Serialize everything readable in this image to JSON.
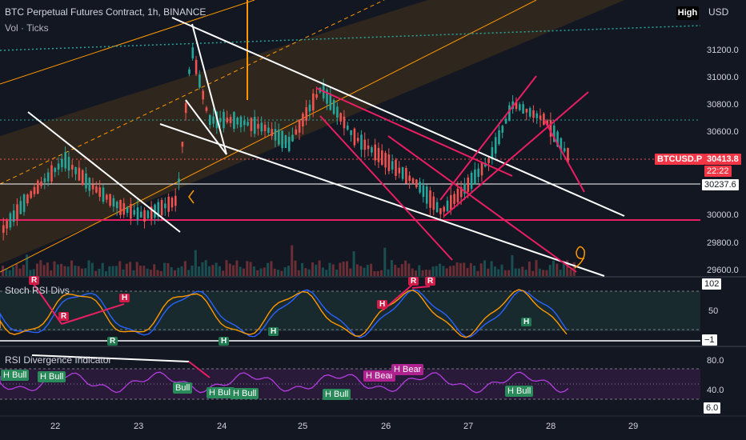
{
  "header": {
    "title": "BTC Perpetual Futures Contract, 1h, BINANCE",
    "subtitle": "Vol · Ticks",
    "high_button": "High",
    "currency": "USD"
  },
  "price_axis": {
    "labels": [
      "31200.0",
      "31000.0",
      "30800.0",
      "30600.0",
      "30000.0",
      "29800.0",
      "29600.0"
    ],
    "symbol_label": "BTCUSD.P",
    "last_price": "30413.8",
    "countdown": "22:22",
    "line_value": "30237.6",
    "colors": {
      "symbol_bg": "#f23645",
      "line_bg": "#ffffff"
    }
  },
  "stoch_panel": {
    "title": "Stoch RSI Divs",
    "axis": [
      "102",
      "50",
      "−1"
    ],
    "markers_r": [
      "R",
      "R",
      "R",
      "R",
      "R"
    ],
    "markers_h": [
      "H",
      "H",
      "H"
    ],
    "markers_h_small": [
      "H",
      "H"
    ]
  },
  "rsi_panel": {
    "title": "RSI Divergence Indicator",
    "axis": [
      "80.0",
      "40.0",
      "6.0"
    ],
    "badges": [
      "H Bull",
      "H Bull",
      "Bull",
      "H Bull",
      "H Bull",
      "H Bull",
      "H Bear",
      "H Bear",
      "H Bull"
    ]
  },
  "time_axis": {
    "labels": [
      "22",
      "23",
      "24",
      "25",
      "26",
      "27",
      "28",
      "29"
    ]
  },
  "colors": {
    "bg": "#131722",
    "up": "#26a69a",
    "down": "#ef5350",
    "channel": "#ff9800",
    "magenta": "#e91e63",
    "purple": "#9c27b0"
  }
}
